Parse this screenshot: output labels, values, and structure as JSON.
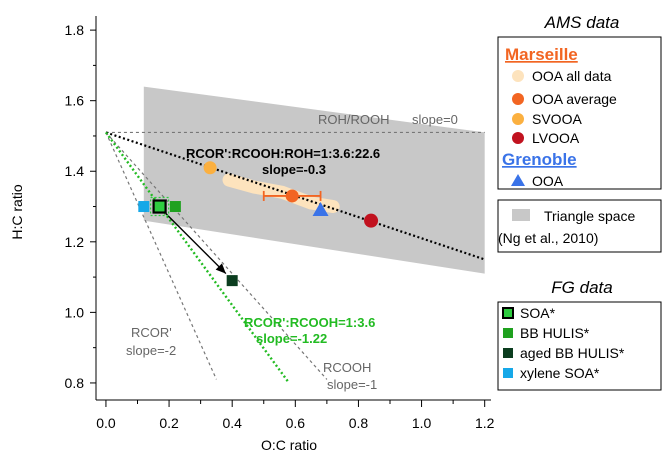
{
  "colors": {
    "triangle": "#c8c8c8",
    "ooa_all": "#fde3bd",
    "ooa_avg": "#f26522",
    "svooa": "#fbb040",
    "lvooa": "#c1121f",
    "grenoble": "#3a73e8",
    "marseille_heading": "#f26522",
    "grenoble_heading": "#3a73e8",
    "fg_soa": "#2ecc40",
    "bb_hulis": "#1fa11f",
    "aged_bb_hulis": "#0b3d1f",
    "xylene_soa": "#16a8e8",
    "green_line": "#22bb22",
    "ref_line": "#777777"
  },
  "chart_data": {
    "type": "scatter",
    "xlabel": "O:C ratio",
    "ylabel": "H:C ratio",
    "xlim": [
      -0.06,
      1.22
    ],
    "ylim": [
      0.78,
      1.84
    ],
    "x_ticks": [
      0.0,
      0.2,
      0.4,
      0.6,
      0.8,
      1.0,
      1.2
    ],
    "y_ticks": [
      0.8,
      1.0,
      1.2,
      1.4,
      1.6,
      1.8
    ],
    "x_tick_labels": [
      "0.0",
      "0.2",
      "0.4",
      "0.6",
      "0.8",
      "1.0",
      "1.2"
    ],
    "y_tick_labels": [
      "0.8",
      "1.0",
      "1.2",
      "1.4",
      "1.6",
      "1.8"
    ],
    "triangle_space": [
      [
        0.12,
        1.64
      ],
      [
        0.12,
        1.26
      ],
      [
        1.2,
        1.11
      ],
      [
        1.2,
        1.51
      ]
    ],
    "ooa_all_data_band": [
      [
        0.39,
        1.375
      ],
      [
        0.47,
        1.355
      ],
      [
        0.56,
        1.34
      ],
      [
        0.65,
        1.31
      ],
      [
        0.72,
        1.3
      ]
    ],
    "series": [
      {
        "name": "OOA average",
        "x": [
          0.59
        ],
        "y": [
          1.33
        ],
        "x_err": [
          0.09
        ]
      },
      {
        "name": "SVOOA",
        "x": [
          0.33
        ],
        "y": [
          1.41
        ]
      },
      {
        "name": "LVOOA",
        "x": [
          0.84
        ],
        "y": [
          1.26
        ]
      },
      {
        "name": "Grenoble OOA",
        "x": [
          0.68
        ],
        "y": [
          1.29
        ]
      },
      {
        "name": "SOA*",
        "x": [
          0.17
        ],
        "y": [
          1.3
        ]
      },
      {
        "name": "BB HULIS*",
        "x": [
          0.22
        ],
        "y": [
          1.3
        ]
      },
      {
        "name": "aged BB HULIS*",
        "x": [
          0.4
        ],
        "y": [
          1.09
        ]
      },
      {
        "name": "xylene SOA*",
        "x": [
          0.12
        ],
        "y": [
          1.3
        ]
      }
    ],
    "reference_lines": [
      {
        "id": "roh",
        "from": [
          0.0,
          1.51
        ],
        "to": [
          1.2,
          1.51
        ],
        "slope": 0
      },
      {
        "id": "rcooh",
        "from": [
          0.0,
          1.51
        ],
        "to": [
          0.7,
          0.81
        ],
        "slope": -1
      },
      {
        "id": "rcor",
        "from": [
          0.0,
          1.51
        ],
        "to": [
          0.35,
          0.81
        ],
        "slope": -2
      }
    ],
    "fit_lines": [
      {
        "id": "black",
        "from": [
          0.0,
          1.51
        ],
        "to": [
          1.2,
          1.15
        ],
        "slope": -0.3
      },
      {
        "id": "green",
        "from": [
          0.0,
          1.51
        ],
        "to": [
          0.58,
          0.8
        ],
        "slope": -1.22
      }
    ],
    "arrow": {
      "from": [
        0.19,
        1.28
      ],
      "to": [
        0.38,
        1.11
      ]
    },
    "annotations": {
      "roh": "ROH/ROOH",
      "roh_slope": "slope=0",
      "black_ratio": "RCOR':RCOOH:ROH=1:3.6:22.6",
      "black_slope": "slope=-0.3",
      "green_ratio": "RCOR':RCOOH=1:3.6",
      "green_slope": "slope=-1.22",
      "rcor": "RCOR'",
      "rcor_slope": "slope=-2",
      "rcooh": "RCOOH",
      "rcooh_slope": "slope=-1"
    }
  },
  "legend": {
    "ams_title": "AMS data",
    "marseille": "Marseille",
    "ooa_all": "OOA all data",
    "ooa_avg": "OOA average",
    "svooa": "SVOOA",
    "lvooa": "LVOOA",
    "grenoble": "Grenoble",
    "grenoble_ooa": "OOA",
    "triangle": "Triangle space",
    "triangle_ref": "(Ng et al., 2010)",
    "fg_title": "FG data",
    "soa": "SOA*",
    "bb_hulis": "BB HULIS*",
    "aged_bb_hulis": "aged BB HULIS*",
    "xylene_soa": "xylene SOA*"
  }
}
